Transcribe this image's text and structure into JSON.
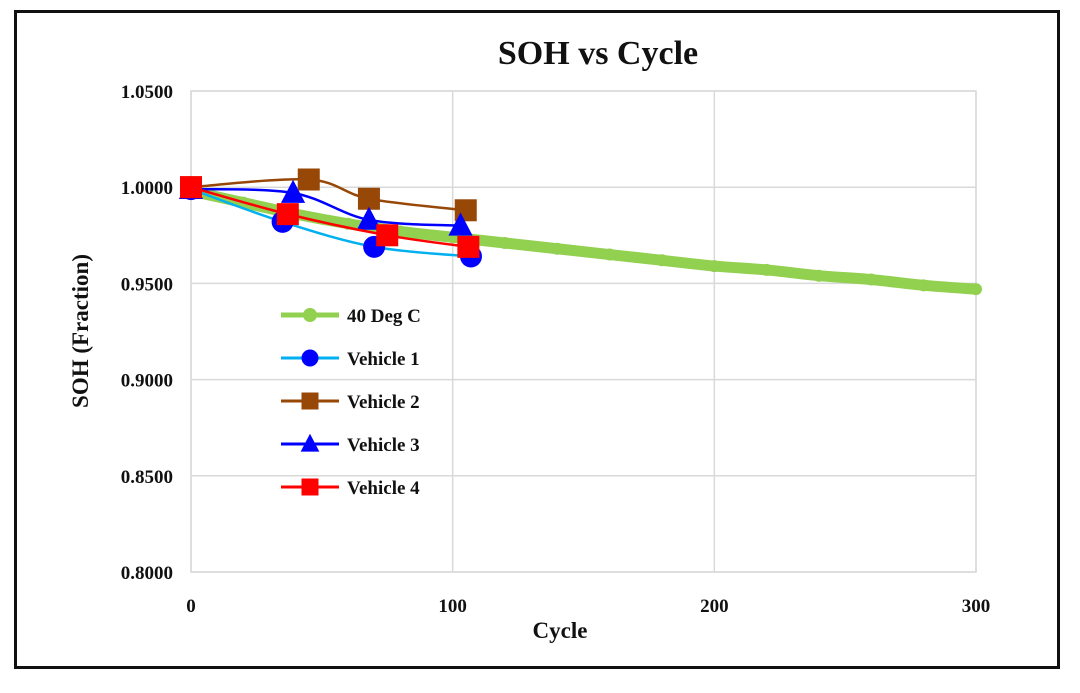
{
  "chart_data": {
    "type": "line",
    "title": "SOH vs Cycle",
    "xlabel": "Cycle",
    "ylabel": "SOH (Fraction)",
    "xlim": [
      0,
      300
    ],
    "ylim": [
      0.8,
      1.05
    ],
    "x_ticks": [
      "0",
      "100",
      "200",
      "300"
    ],
    "y_ticks": [
      "0.8000",
      "0.8500",
      "0.9000",
      "0.9500",
      "1.0000",
      "1.0500"
    ],
    "grid": true,
    "legend_position": "lower-left",
    "series": [
      {
        "name": "40 Deg C",
        "color": "#92D050",
        "marker": "circle",
        "x": [
          0,
          20,
          40,
          60,
          80,
          100,
          120,
          140,
          160,
          180,
          200,
          220,
          240,
          260,
          280,
          300
        ],
        "y": [
          0.998,
          0.992,
          0.986,
          0.981,
          0.977,
          0.974,
          0.971,
          0.968,
          0.965,
          0.962,
          0.959,
          0.957,
          0.954,
          0.952,
          0.949,
          0.947
        ]
      },
      {
        "name": "Vehicle 1",
        "color": "#00B0F0",
        "marker_color": "#0000FF",
        "marker": "circle",
        "x": [
          0,
          35,
          70,
          107
        ],
        "y": [
          0.999,
          0.982,
          0.969,
          0.964
        ]
      },
      {
        "name": "Vehicle 2",
        "color": "#974706",
        "marker": "square",
        "x": [
          0,
          45,
          68,
          105
        ],
        "y": [
          1.0,
          1.004,
          0.994,
          0.988
        ]
      },
      {
        "name": "Vehicle 3",
        "color": "#0000FF",
        "marker": "triangle",
        "x": [
          0,
          39,
          68,
          103
        ],
        "y": [
          0.999,
          0.997,
          0.983,
          0.98
        ]
      },
      {
        "name": "Vehicle 4",
        "color": "#FF0000",
        "marker": "square",
        "x": [
          0,
          37,
          75,
          106
        ],
        "y": [
          1.0,
          0.986,
          0.975,
          0.969
        ]
      }
    ]
  }
}
